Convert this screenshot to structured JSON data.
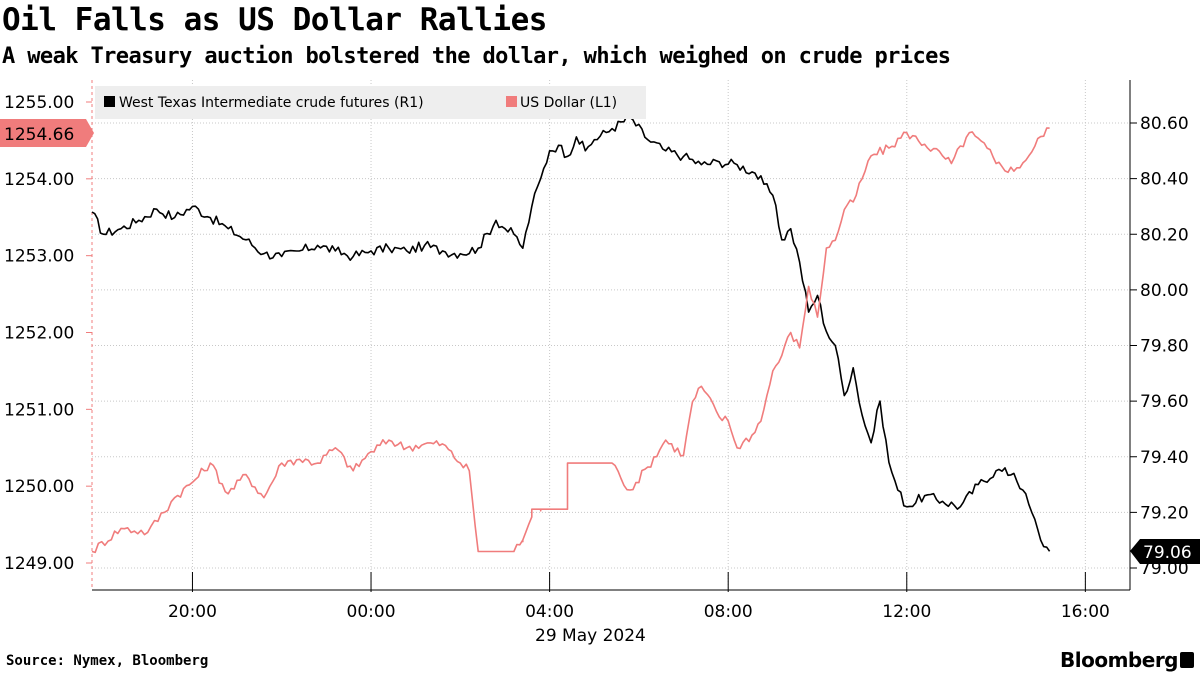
{
  "title": "Oil Falls as US Dollar Rallies",
  "subtitle": "A weak Treasury auction bolstered the dollar, which weighed on crude prices",
  "source": "Source: Nymex, Bloomberg",
  "brand": "Bloomberg",
  "colors": {
    "oil": "#000000",
    "dollar": "#f07c7c",
    "grid": "#c8c8c8"
  },
  "chart_data": {
    "type": "line",
    "title": "Oil Falls as US Dollar Rallies",
    "xlabel": "29 May 2024",
    "x_ticks": [
      "20:00",
      "00:00",
      "04:00",
      "08:00",
      "12:00",
      "16:00"
    ],
    "x_tick_hours": [
      20,
      24,
      28,
      32,
      36,
      40
    ],
    "x_range_hours": [
      17.75,
      41.0
    ],
    "left_axis": {
      "name": "US Dollar (L1)",
      "ylim": [
        1248.7,
        1255.2
      ],
      "ticks": [
        "1249.00",
        "1250.00",
        "1251.00",
        "1252.00",
        "1253.00",
        "1254.00",
        "1255.00"
      ],
      "tick_values": [
        1249,
        1250,
        1251,
        1252,
        1253,
        1254,
        1255
      ],
      "last_value_label": "1254.66"
    },
    "right_axis": {
      "name": "West Texas Intermediate crude futures (R1)",
      "ylim": [
        78.98,
        80.72
      ],
      "ticks": [
        "79.00",
        "79.20",
        "79.40",
        "79.60",
        "79.80",
        "80.00",
        "80.20",
        "80.40",
        "80.60"
      ],
      "tick_values": [
        79.0,
        79.2,
        79.4,
        79.6,
        79.8,
        80.0,
        80.2,
        80.4,
        80.6
      ],
      "last_value_label": "79.06"
    },
    "legend": [
      "West Texas Intermediate crude futures (R1)",
      "US Dollar (L1)"
    ],
    "series": [
      {
        "name": "West Texas Intermediate crude futures (R1)",
        "axis": "right",
        "x": [
          17.75,
          18.0,
          18.4,
          18.8,
          19.2,
          19.6,
          20.0,
          20.4,
          20.8,
          21.2,
          21.6,
          22.0,
          22.4,
          22.8,
          23.2,
          23.6,
          24.0,
          24.4,
          24.8,
          25.2,
          25.6,
          26.0,
          26.4,
          26.8,
          27.0,
          27.2,
          27.4,
          27.6,
          27.8,
          28.0,
          28.2,
          28.4,
          28.6,
          28.8,
          29.0,
          29.4,
          29.8,
          30.2,
          30.6,
          31.0,
          31.4,
          31.8,
          32.2,
          32.6,
          32.8,
          33.0,
          33.2,
          33.4,
          33.6,
          33.8,
          34.0,
          34.2,
          34.4,
          34.6,
          34.8,
          35.0,
          35.2,
          35.4,
          35.6,
          35.8,
          36.0,
          36.4,
          36.8,
          37.2,
          37.6,
          38.0,
          38.4,
          38.6,
          38.8,
          39.0,
          39.2
        ],
        "values": [
          80.28,
          80.2,
          80.22,
          80.25,
          80.29,
          80.26,
          80.3,
          80.26,
          80.22,
          80.18,
          80.13,
          80.12,
          80.14,
          80.16,
          80.14,
          80.12,
          80.14,
          80.15,
          80.14,
          80.16,
          80.14,
          80.13,
          80.15,
          80.25,
          80.22,
          80.2,
          80.15,
          80.3,
          80.4,
          80.5,
          80.52,
          80.48,
          80.55,
          80.5,
          80.54,
          80.58,
          80.62,
          80.54,
          80.5,
          80.48,
          80.45,
          80.46,
          80.45,
          80.42,
          80.38,
          80.34,
          80.18,
          80.22,
          80.1,
          79.92,
          79.98,
          79.85,
          79.8,
          79.62,
          79.72,
          79.55,
          79.45,
          79.6,
          79.38,
          79.28,
          79.22,
          79.26,
          79.24,
          79.22,
          79.3,
          79.35,
          79.34,
          79.28,
          79.2,
          79.1,
          79.06
        ]
      },
      {
        "name": "US Dollar (L1)",
        "axis": "left",
        "x": [
          17.75,
          18.4,
          19.0,
          19.6,
          20.0,
          20.4,
          20.8,
          21.2,
          21.6,
          22.0,
          22.4,
          22.8,
          23.2,
          23.6,
          24.0,
          24.4,
          24.8,
          25.2,
          25.6,
          26.0,
          26.2,
          26.4,
          26.8,
          27.0,
          27.2,
          27.4,
          27.4,
          27.6,
          27.6,
          27.8,
          27.8,
          28.2,
          28.4,
          28.4,
          29.2,
          29.4,
          29.6,
          29.8,
          30.2,
          30.6,
          31.0,
          31.2,
          31.4,
          31.8,
          32.0,
          32.2,
          32.6,
          32.8,
          33.0,
          33.2,
          33.4,
          33.6,
          33.8,
          34.0,
          34.2,
          34.4,
          34.6,
          34.8,
          35.0,
          35.2,
          35.6,
          36.0,
          36.4,
          36.8,
          37.0,
          37.4,
          37.8,
          38.0,
          38.4,
          38.8,
          39.0,
          39.2
        ],
        "values": [
          1249.15,
          1249.45,
          1249.4,
          1249.85,
          1250.05,
          1250.3,
          1249.9,
          1250.15,
          1249.85,
          1250.3,
          1250.35,
          1250.3,
          1250.5,
          1250.2,
          1250.45,
          1250.6,
          1250.5,
          1250.55,
          1250.55,
          1250.3,
          1250.2,
          1249.15,
          1249.15,
          1249.15,
          1249.15,
          1249.3,
          1249.3,
          1249.6,
          1249.7,
          1249.7,
          1249.7,
          1249.7,
          1249.7,
          1250.3,
          1250.3,
          1250.3,
          1250.1,
          1249.95,
          1250.25,
          1250.6,
          1250.4,
          1251.1,
          1251.3,
          1250.9,
          1250.85,
          1250.5,
          1250.7,
          1251.0,
          1251.5,
          1251.7,
          1252.0,
          1251.8,
          1252.6,
          1252.2,
          1253.1,
          1253.2,
          1253.6,
          1253.7,
          1254.0,
          1254.3,
          1254.4,
          1254.6,
          1254.45,
          1254.3,
          1254.2,
          1254.6,
          1254.4,
          1254.2,
          1254.1,
          1254.35,
          1254.55,
          1254.66
        ]
      }
    ]
  }
}
